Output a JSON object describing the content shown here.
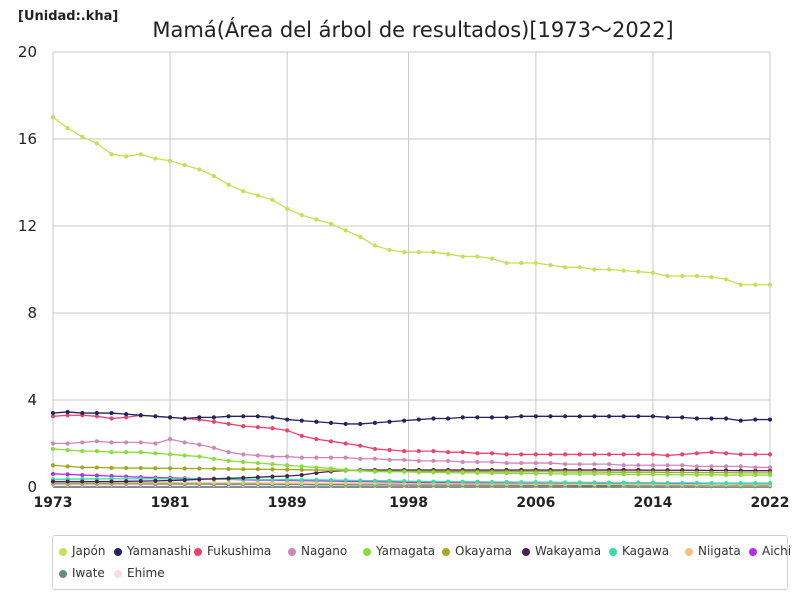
{
  "unit_label": "[Unidad:.kha]",
  "chart_data": {
    "type": "line",
    "title": "Mamá(Área del árbol de resultados)[1973～2022]",
    "xlabel": "",
    "ylabel": "",
    "xlim": [
      1973,
      2022
    ],
    "ylim": [
      0,
      20
    ],
    "x_ticks": [
      "1973",
      "1981",
      "1989",
      "1998",
      "2006",
      "2014",
      "2022"
    ],
    "x_tick_values": [
      1973,
      1981,
      1989,
      1997.3,
      2006,
      2014,
      2022
    ],
    "y_ticks": [
      0,
      4,
      8,
      12,
      16,
      20
    ],
    "grid": true,
    "legend_position": "bottom",
    "years": [
      1973,
      1974,
      1975,
      1976,
      1977,
      1978,
      1979,
      1980,
      1981,
      1982,
      1983,
      1984,
      1985,
      1986,
      1987,
      1988,
      1989,
      1990,
      1991,
      1992,
      1993,
      1994,
      1995,
      1996,
      1997,
      1998,
      1999,
      2000,
      2001,
      2002,
      2003,
      2004,
      2005,
      2006,
      2007,
      2008,
      2009,
      2010,
      2011,
      2012,
      2013,
      2014,
      2015,
      2016,
      2017,
      2018,
      2019,
      2020,
      2021,
      2022
    ],
    "series": [
      {
        "name": "Japón",
        "color": "#c5e055",
        "values": [
          17.0,
          16.5,
          16.1,
          15.8,
          15.3,
          15.2,
          15.3,
          15.1,
          15.0,
          14.8,
          14.6,
          14.3,
          13.9,
          13.6,
          13.4,
          13.2,
          12.8,
          12.5,
          12.3,
          12.1,
          11.8,
          11.5,
          11.1,
          10.9,
          10.8,
          10.8,
          10.8,
          10.7,
          10.6,
          10.6,
          10.5,
          10.3,
          10.3,
          10.3,
          10.2,
          10.1,
          10.1,
          10.0,
          10.0,
          9.95,
          9.9,
          9.85,
          9.7,
          9.7,
          9.7,
          9.65,
          9.55,
          9.3,
          9.3,
          9.3
        ]
      },
      {
        "name": "Yamanashi",
        "color": "#23235e",
        "values": [
          3.4,
          3.45,
          3.4,
          3.4,
          3.4,
          3.35,
          3.3,
          3.25,
          3.2,
          3.15,
          3.2,
          3.2,
          3.25,
          3.25,
          3.25,
          3.2,
          3.1,
          3.05,
          3.0,
          2.95,
          2.9,
          2.9,
          2.95,
          3.0,
          3.05,
          3.1,
          3.15,
          3.15,
          3.2,
          3.2,
          3.2,
          3.2,
          3.25,
          3.25,
          3.25,
          3.25,
          3.25,
          3.25,
          3.25,
          3.25,
          3.25,
          3.25,
          3.2,
          3.2,
          3.15,
          3.15,
          3.15,
          3.05,
          3.1,
          3.1
        ]
      },
      {
        "name": "Fukushima",
        "color": "#e8446e",
        "values": [
          3.25,
          3.3,
          3.3,
          3.25,
          3.15,
          3.2,
          3.3,
          3.25,
          3.2,
          3.15,
          3.1,
          3.0,
          2.9,
          2.8,
          2.75,
          2.7,
          2.6,
          2.35,
          2.2,
          2.1,
          2.0,
          1.9,
          1.75,
          1.7,
          1.65,
          1.65,
          1.65,
          1.6,
          1.6,
          1.55,
          1.55,
          1.5,
          1.5,
          1.5,
          1.5,
          1.5,
          1.5,
          1.5,
          1.5,
          1.5,
          1.5,
          1.5,
          1.45,
          1.5,
          1.55,
          1.6,
          1.55,
          1.5,
          1.5,
          1.5
        ]
      },
      {
        "name": "Nagano",
        "color": "#cf86b8",
        "values": [
          2.0,
          2.0,
          2.05,
          2.1,
          2.05,
          2.05,
          2.05,
          2.0,
          2.2,
          2.05,
          1.95,
          1.8,
          1.6,
          1.5,
          1.45,
          1.4,
          1.4,
          1.35,
          1.35,
          1.35,
          1.35,
          1.3,
          1.3,
          1.25,
          1.25,
          1.2,
          1.2,
          1.2,
          1.15,
          1.15,
          1.15,
          1.1,
          1.1,
          1.1,
          1.1,
          1.05,
          1.05,
          1.05,
          1.05,
          1.0,
          1.0,
          1.0,
          1.0,
          1.0,
          0.95,
          0.95,
          0.95,
          0.95,
          0.9,
          0.9
        ]
      },
      {
        "name": "Yamagata",
        "color": "#86dd3c",
        "values": [
          1.75,
          1.7,
          1.65,
          1.65,
          1.6,
          1.6,
          1.6,
          1.55,
          1.5,
          1.45,
          1.4,
          1.3,
          1.2,
          1.15,
          1.1,
          1.05,
          1.0,
          0.95,
          0.9,
          0.85,
          0.8,
          0.75,
          0.7,
          0.7,
          0.7,
          0.68,
          0.67,
          0.66,
          0.65,
          0.65,
          0.64,
          0.63,
          0.62,
          0.62,
          0.61,
          0.6,
          0.6,
          0.6,
          0.59,
          0.58,
          0.58,
          0.58,
          0.57,
          0.57,
          0.56,
          0.56,
          0.55,
          0.55,
          0.55,
          0.55
        ]
      },
      {
        "name": "Okayama",
        "color": "#a3a822",
        "values": [
          1.0,
          0.95,
          0.9,
          0.9,
          0.88,
          0.87,
          0.87,
          0.86,
          0.86,
          0.85,
          0.85,
          0.84,
          0.83,
          0.82,
          0.82,
          0.81,
          0.8,
          0.79,
          0.78,
          0.77,
          0.76,
          0.75,
          0.74,
          0.73,
          0.73,
          0.72,
          0.72,
          0.72,
          0.71,
          0.71,
          0.71,
          0.7,
          0.7,
          0.7,
          0.7,
          0.69,
          0.69,
          0.69,
          0.68,
          0.68,
          0.68,
          0.68,
          0.67,
          0.67,
          0.67,
          0.66,
          0.66,
          0.65,
          0.65,
          0.65
        ]
      },
      {
        "name": "Wakayama",
        "color": "#4a2250",
        "values": [
          0.25,
          0.25,
          0.25,
          0.25,
          0.25,
          0.26,
          0.27,
          0.28,
          0.3,
          0.32,
          0.35,
          0.38,
          0.4,
          0.42,
          0.45,
          0.48,
          0.5,
          0.55,
          0.65,
          0.72,
          0.76,
          0.78,
          0.78,
          0.78,
          0.78,
          0.78,
          0.78,
          0.78,
          0.78,
          0.78,
          0.78,
          0.78,
          0.78,
          0.78,
          0.78,
          0.78,
          0.78,
          0.78,
          0.78,
          0.78,
          0.78,
          0.77,
          0.77,
          0.77,
          0.77,
          0.76,
          0.76,
          0.75,
          0.75,
          0.75
        ]
      },
      {
        "name": "Kagawa",
        "color": "#35dfa6",
        "values": [
          0.35,
          0.36,
          0.37,
          0.37,
          0.38,
          0.38,
          0.38,
          0.38,
          0.38,
          0.37,
          0.37,
          0.36,
          0.36,
          0.35,
          0.35,
          0.34,
          0.34,
          0.33,
          0.33,
          0.32,
          0.31,
          0.3,
          0.29,
          0.28,
          0.27,
          0.26,
          0.25,
          0.25,
          0.24,
          0.24,
          0.23,
          0.23,
          0.22,
          0.22,
          0.22,
          0.21,
          0.21,
          0.21,
          0.2,
          0.2,
          0.2,
          0.2,
          0.19,
          0.19,
          0.19,
          0.18,
          0.18,
          0.18,
          0.18,
          0.18
        ]
      },
      {
        "name": "Niigata",
        "color": "#f5c07d",
        "values": [
          0.2,
          0.2,
          0.2,
          0.2,
          0.2,
          0.2,
          0.2,
          0.2,
          0.2,
          0.2,
          0.2,
          0.19,
          0.19,
          0.19,
          0.19,
          0.18,
          0.18,
          0.18,
          0.17,
          0.17,
          0.17,
          0.16,
          0.16,
          0.16,
          0.15,
          0.15,
          0.15,
          0.15,
          0.14,
          0.14,
          0.14,
          0.14,
          0.13,
          0.13,
          0.13,
          0.13,
          0.13,
          0.12,
          0.12,
          0.12,
          0.12,
          0.12,
          0.11,
          0.11,
          0.11,
          0.11,
          0.11,
          0.1,
          0.1,
          0.1
        ]
      },
      {
        "name": "Aichi",
        "color": "#b52ee3",
        "values": [
          0.6,
          0.58,
          0.55,
          0.53,
          0.5,
          0.48,
          0.45,
          0.43,
          0.42,
          0.4,
          0.38,
          0.36,
          0.35,
          0.33,
          0.32,
          0.31,
          0.3,
          0.29,
          0.28,
          0.27,
          0.26,
          0.25,
          0.24,
          0.23,
          0.22,
          0.21,
          0.2,
          0.2,
          0.19,
          0.19,
          0.18,
          0.18,
          0.17,
          0.17,
          0.16,
          0.16,
          0.15,
          0.15,
          0.15,
          0.14,
          0.14,
          0.14,
          0.13,
          0.13,
          0.13,
          0.12,
          0.12,
          0.12,
          0.12,
          0.12
        ]
      },
      {
        "name": "Iwate",
        "color": "#5c9471",
        "values": [
          0.15,
          0.15,
          0.15,
          0.15,
          0.15,
          0.15,
          0.15,
          0.14,
          0.14,
          0.14,
          0.14,
          0.13,
          0.13,
          0.13,
          0.13,
          0.12,
          0.12,
          0.12,
          0.11,
          0.11,
          0.11,
          0.1,
          0.1,
          0.1,
          0.09,
          0.09,
          0.09,
          0.09,
          0.08,
          0.08,
          0.08,
          0.08,
          0.07,
          0.07,
          0.07,
          0.07,
          0.06,
          0.06,
          0.06,
          0.06,
          0.05,
          0.05,
          0.05,
          0.05,
          0.05,
          0.04,
          0.04,
          0.04,
          0.04,
          0.04
        ]
      },
      {
        "name": "Ehime",
        "color": "#f9dde6",
        "values": [
          0.1,
          0.1,
          0.1,
          0.1,
          0.1,
          0.1,
          0.1,
          0.1,
          0.1,
          0.1,
          0.1,
          0.1,
          0.09,
          0.09,
          0.09,
          0.09,
          0.09,
          0.09,
          0.08,
          0.08,
          0.08,
          0.08,
          0.08,
          0.07,
          0.07,
          0.07,
          0.07,
          0.07,
          0.06,
          0.06,
          0.06,
          0.06,
          0.06,
          0.05,
          0.05,
          0.05,
          0.05,
          0.05,
          0.05,
          0.04,
          0.04,
          0.04,
          0.04,
          0.04,
          0.04,
          0.03,
          0.03,
          0.03,
          0.03,
          0.03
        ]
      }
    ]
  }
}
